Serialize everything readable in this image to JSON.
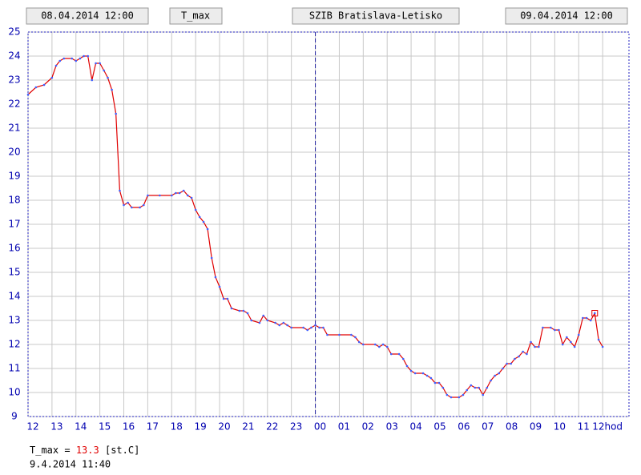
{
  "header": [
    "08.04.2014 12:00",
    "09.04.2014 12:00",
    "SZIB Bratislava-Letisko"
  ],
  "chart_data": {
    "type": "line",
    "series": [
      {
        "name": "T_max",
        "color": "#e00000",
        "marker_color": "#4060ff",
        "x": [
          0,
          0.33,
          0.67,
          1.0,
          1.17,
          1.33,
          1.5,
          1.83,
          2.0,
          2.17,
          2.33,
          2.5,
          2.67,
          2.83,
          3.0,
          3.17,
          3.33,
          3.5,
          3.67,
          3.83,
          4.0,
          4.17,
          4.33,
          4.67,
          4.83,
          5.0,
          5.5,
          6.0,
          6.17,
          6.33,
          6.5,
          6.67,
          6.83,
          7.0,
          7.17,
          7.33,
          7.5,
          7.67,
          7.83,
          8.0,
          8.17,
          8.33,
          8.5,
          8.83,
          9.0,
          9.17,
          9.33,
          9.67,
          9.83,
          10.0,
          10.33,
          10.5,
          10.67,
          10.83,
          11.0,
          11.5,
          11.67,
          11.83,
          12.0,
          12.17,
          12.33,
          12.5,
          13.0,
          13.5,
          13.67,
          13.83,
          14.0,
          14.5,
          14.67,
          14.83,
          15.0,
          15.17,
          15.5,
          15.67,
          15.83,
          16.0,
          16.17,
          16.5,
          16.67,
          16.83,
          17.0,
          17.17,
          17.33,
          17.5,
          17.67,
          18.0,
          18.17,
          18.33,
          18.5,
          18.67,
          18.83,
          19.0,
          19.17,
          19.33,
          19.5,
          19.67,
          19.83,
          20.0,
          20.17,
          20.33,
          20.5,
          20.67,
          20.83,
          21.0,
          21.17,
          21.33,
          21.5,
          21.83,
          22.0,
          22.17,
          22.33,
          22.5,
          22.67,
          22.83,
          23.0,
          23.17,
          23.33,
          23.5,
          23.67,
          23.83,
          24.0
        ],
        "values": [
          22.4,
          22.7,
          22.8,
          23.1,
          23.6,
          23.8,
          23.9,
          23.9,
          23.8,
          23.9,
          24.0,
          24.0,
          23.0,
          23.7,
          23.7,
          23.4,
          23.1,
          22.6,
          21.6,
          18.4,
          17.8,
          17.9,
          17.7,
          17.7,
          17.8,
          18.2,
          18.2,
          18.2,
          18.3,
          18.3,
          18.4,
          18.2,
          18.1,
          17.6,
          17.3,
          17.1,
          16.8,
          15.6,
          14.8,
          14.4,
          13.9,
          13.9,
          13.5,
          13.4,
          13.4,
          13.3,
          13.0,
          12.9,
          13.2,
          13.0,
          12.9,
          12.8,
          12.9,
          12.8,
          12.7,
          12.7,
          12.6,
          12.7,
          12.8,
          12.7,
          12.7,
          12.4,
          12.4,
          12.4,
          12.3,
          12.1,
          12.0,
          12.0,
          11.9,
          12.0,
          11.9,
          11.6,
          11.6,
          11.4,
          11.1,
          10.9,
          10.8,
          10.8,
          10.7,
          10.6,
          10.4,
          10.4,
          10.2,
          9.9,
          9.8,
          9.8,
          9.9,
          10.1,
          10.3,
          10.2,
          10.2,
          9.9,
          10.2,
          10.5,
          10.7,
          10.8,
          11.0,
          11.2,
          11.2,
          11.4,
          11.5,
          11.7,
          11.6,
          12.1,
          11.9,
          11.9,
          12.7,
          12.7,
          12.6,
          12.6,
          12.0,
          12.3,
          12.1,
          11.9,
          12.4,
          13.1,
          13.1,
          13.0,
          13.3,
          12.2,
          11.9
        ]
      }
    ],
    "xlim": [
      0,
      25.1
    ],
    "ylim": [
      9,
      25
    ],
    "xticks": [
      {
        "value": 0,
        "label": "12"
      },
      {
        "value": 1,
        "label": "13"
      },
      {
        "value": 2,
        "label": "14"
      },
      {
        "value": 3,
        "label": "15"
      },
      {
        "value": 4,
        "label": "16"
      },
      {
        "value": 5,
        "label": "17"
      },
      {
        "value": 6,
        "label": "18"
      },
      {
        "value": 7,
        "label": "19"
      },
      {
        "value": 8,
        "label": "20"
      },
      {
        "value": 9,
        "label": "21"
      },
      {
        "value": 10,
        "label": "22"
      },
      {
        "value": 11,
        "label": "23"
      },
      {
        "value": 12,
        "label": "00"
      },
      {
        "value": 13,
        "label": "01"
      },
      {
        "value": 14,
        "label": "02"
      },
      {
        "value": 15,
        "label": "03"
      },
      {
        "value": 16,
        "label": "04"
      },
      {
        "value": 17,
        "label": "05"
      },
      {
        "value": 18,
        "label": "06"
      },
      {
        "value": 19,
        "label": "07"
      },
      {
        "value": 20,
        "label": "08"
      },
      {
        "value": 21,
        "label": "09"
      },
      {
        "value": 22,
        "label": "10"
      },
      {
        "value": 23,
        "label": "11"
      },
      {
        "value": 24,
        "label": "12hod"
      }
    ],
    "yticks": [
      9,
      10,
      11,
      12,
      13,
      14,
      15,
      16,
      17,
      18,
      19,
      20,
      21,
      22,
      23,
      24,
      25
    ],
    "grid": true,
    "vline": 12,
    "readout": {
      "sep": "=",
      "value": 13.3,
      "unit": "[st.C]",
      "time": "9.4.2014 11:40"
    }
  }
}
